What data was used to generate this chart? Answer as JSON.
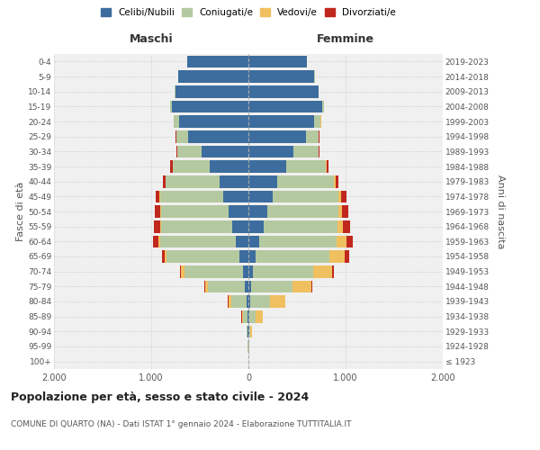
{
  "age_groups": [
    "100+",
    "95-99",
    "90-94",
    "85-89",
    "80-84",
    "75-79",
    "70-74",
    "65-69",
    "60-64",
    "55-59",
    "50-54",
    "45-49",
    "40-44",
    "35-39",
    "30-34",
    "25-29",
    "20-24",
    "15-19",
    "10-14",
    "5-9",
    "0-4"
  ],
  "birth_years": [
    "≤ 1923",
    "1924-1928",
    "1929-1933",
    "1934-1938",
    "1939-1943",
    "1944-1948",
    "1949-1953",
    "1954-1958",
    "1959-1963",
    "1964-1968",
    "1969-1973",
    "1974-1978",
    "1979-1983",
    "1984-1988",
    "1989-1993",
    "1994-1998",
    "1999-2003",
    "2004-2008",
    "2009-2013",
    "2014-2018",
    "2019-2023"
  ],
  "males": {
    "celibi": [
      2,
      3,
      5,
      8,
      20,
      35,
      60,
      90,
      130,
      170,
      200,
      260,
      300,
      400,
      480,
      620,
      710,
      790,
      750,
      720,
      630
    ],
    "coniugati": [
      1,
      4,
      12,
      50,
      160,
      380,
      600,
      750,
      780,
      730,
      700,
      650,
      550,
      380,
      250,
      120,
      60,
      20,
      5,
      3,
      2
    ],
    "vedovi": [
      0,
      1,
      3,
      10,
      25,
      30,
      30,
      20,
      15,
      10,
      8,
      5,
      3,
      2,
      1,
      1,
      0,
      0,
      0,
      0,
      0
    ],
    "divorziati": [
      0,
      0,
      1,
      2,
      5,
      10,
      15,
      25,
      55,
      60,
      55,
      40,
      30,
      20,
      10,
      5,
      2,
      0,
      0,
      0,
      0
    ]
  },
  "females": {
    "nubili": [
      2,
      3,
      5,
      10,
      18,
      30,
      50,
      75,
      110,
      155,
      195,
      250,
      300,
      390,
      460,
      590,
      680,
      760,
      720,
      680,
      600
    ],
    "coniugate": [
      1,
      5,
      15,
      60,
      200,
      420,
      620,
      760,
      800,
      760,
      730,
      680,
      580,
      410,
      260,
      130,
      65,
      20,
      5,
      3,
      2
    ],
    "vedove": [
      1,
      5,
      20,
      80,
      160,
      200,
      190,
      160,
      100,
      60,
      40,
      25,
      15,
      8,
      4,
      2,
      1,
      0,
      0,
      0,
      0
    ],
    "divorziate": [
      0,
      0,
      1,
      2,
      5,
      10,
      20,
      40,
      65,
      70,
      65,
      50,
      35,
      20,
      10,
      5,
      2,
      1,
      0,
      0,
      0
    ]
  },
  "colors": {
    "celibi": "#3d6d9e",
    "coniugati": "#b5c9a0",
    "vedovi": "#f0c060",
    "divorziati": "#c0281e"
  },
  "title": "Popolazione per età, sesso e stato civile - 2024",
  "subtitle": "COMUNE DI QUARTO (NA) - Dati ISTAT 1° gennaio 2024 - Elaborazione TUTTITALIA.IT",
  "ylabel_left": "Fasce di età",
  "ylabel_right": "Anni di nascita",
  "xlabel_left": "Maschi",
  "xlabel_right": "Femmine",
  "xlim": 2000,
  "legend_labels": [
    "Celibi/Nubili",
    "Coniugati/e",
    "Vedovi/e",
    "Divorziati/e"
  ],
  "background_color": "#ffffff",
  "grid_color": "#cccccc"
}
